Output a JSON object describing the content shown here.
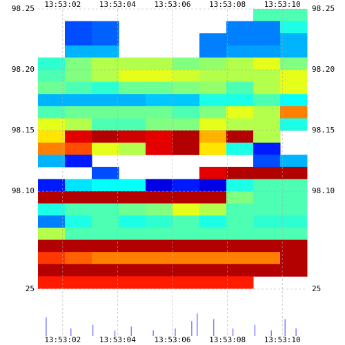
{
  "chart_data": {
    "type": "heatmap",
    "xbins": [
      1.1,
      2.08,
      3.06,
      4.04,
      5.02,
      6.0,
      6.98,
      7.96,
      8.94,
      9.92,
      10.9
    ],
    "ybins": [
      98.25,
      98.24,
      98.23,
      98.22,
      98.21,
      98.2,
      98.19,
      98.18,
      98.17,
      98.16,
      98.15,
      98.14,
      98.13,
      98.12,
      98.11,
      98.1,
      98.09,
      98.08,
      98.07,
      98.06,
      98.05,
      98.04,
      98.03,
      98.02
    ],
    "z": [
      [
        null,
        null,
        null,
        null,
        null,
        null,
        null,
        null,
        45,
        45
      ],
      [
        null,
        20,
        22,
        null,
        null,
        null,
        null,
        25,
        25,
        40
      ],
      [
        null,
        20,
        22,
        null,
        null,
        null,
        25,
        25,
        25,
        30
      ],
      [
        null,
        30,
        30,
        null,
        null,
        null,
        25,
        28,
        28,
        30
      ],
      [
        42,
        50,
        55,
        55,
        55,
        50,
        52,
        55,
        60,
        50
      ],
      [
        45,
        50,
        55,
        60,
        60,
        58,
        55,
        55,
        55,
        60
      ],
      [
        48,
        45,
        42,
        48,
        48,
        50,
        52,
        45,
        55,
        60
      ],
      [
        30,
        30,
        30,
        30,
        32,
        32,
        40,
        40,
        45,
        38
      ],
      [
        45,
        48,
        48,
        48,
        48,
        45,
        50,
        60,
        55,
        75
      ],
      [
        60,
        55,
        45,
        45,
        50,
        50,
        60,
        55,
        55,
        40
      ],
      [
        65,
        90,
        95,
        92,
        90,
        95,
        70,
        95,
        55,
        null
      ],
      [
        75,
        80,
        60,
        55,
        90,
        95,
        65,
        40,
        15,
        null
      ],
      [
        30,
        15,
        null,
        null,
        null,
        null,
        null,
        null,
        20,
        30
      ],
      [
        null,
        null,
        20,
        null,
        null,
        null,
        90,
        95,
        95,
        95
      ],
      [
        15,
        35,
        38,
        38,
        10,
        15,
        10,
        40,
        45,
        45
      ],
      [
        95,
        95,
        95,
        95,
        95,
        95,
        95,
        50,
        45,
        45
      ],
      [
        40,
        45,
        45,
        48,
        50,
        60,
        55,
        45,
        45,
        45
      ],
      [
        25,
        40,
        45,
        40,
        42,
        45,
        40,
        45,
        42,
        42
      ],
      [
        55,
        45,
        45,
        45,
        45,
        45,
        45,
        45,
        45,
        45
      ],
      [
        95,
        95,
        95,
        95,
        95,
        95,
        95,
        95,
        95,
        95
      ],
      [
        82,
        78,
        75,
        75,
        75,
        75,
        75,
        75,
        75,
        95
      ],
      [
        95,
        95,
        95,
        95,
        95,
        95,
        95,
        95,
        95,
        95
      ],
      [
        85,
        85,
        85,
        85,
        85,
        85,
        85,
        85,
        null,
        null
      ]
    ],
    "xlim": [
      1.1,
      10.9
    ],
    "xticks": [
      {
        "value": 2,
        "label": "13:53:02"
      },
      {
        "value": 4,
        "label": "13:53:04"
      },
      {
        "value": 6,
        "label": "13:53:06"
      },
      {
        "value": 8,
        "label": "13:53:08"
      },
      {
        "value": 10,
        "label": "13:53:10"
      }
    ],
    "ylim": [
      98.02,
      98.25
    ],
    "yticks": [
      98.25,
      {
        "value": 98.2,
        "label": "98.20"
      },
      98.15,
      {
        "value": 98.1,
        "label": "98.10"
      }
    ],
    "volume": {
      "x": [
        1.4,
        2.3,
        3.1,
        3.9,
        4.5,
        5.3,
        6.1,
        6.7,
        6.9,
        7.5,
        8.2,
        9.0,
        9.6,
        10.1,
        10.5
      ],
      "values": [
        10,
        4,
        6,
        3,
        5,
        3,
        4,
        8,
        12,
        9,
        4,
        6,
        3,
        9,
        4
      ],
      "color": "#8080ff"
    },
    "y2lim": [
      0,
      25
    ],
    "y2ticks": [
      25
    ],
    "grid": true
  }
}
